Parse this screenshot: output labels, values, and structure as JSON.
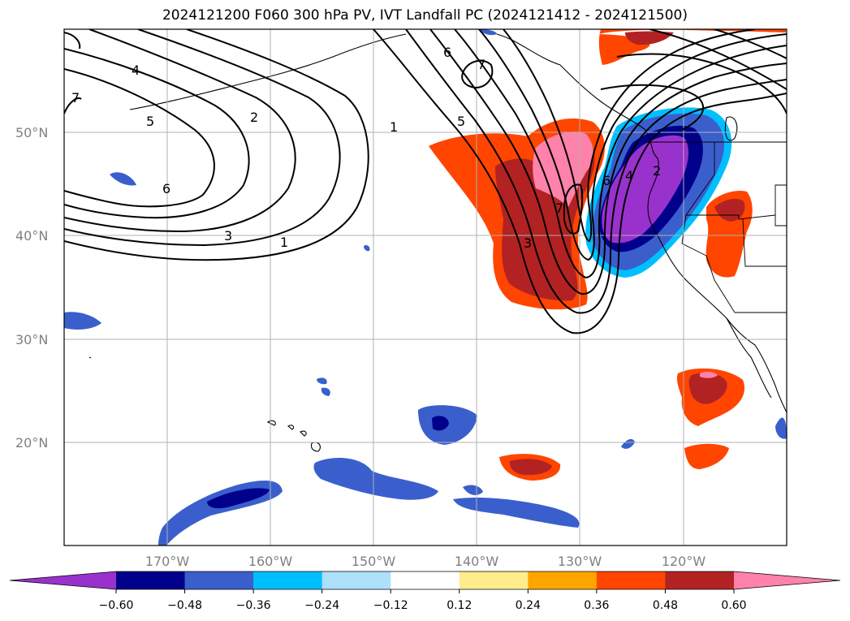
{
  "title": "2024121200 F060 300 hPa PV, IVT Landfall PC (2024121412 - 2024121500)",
  "map": {
    "lat_labels": [
      "50°N",
      "40°N",
      "30°N",
      "20°N"
    ],
    "lon_labels": [
      "170°W",
      "160°W",
      "150°W",
      "140°W",
      "130°W",
      "120°W"
    ],
    "lon_range": [
      -180,
      -110
    ],
    "lat_range": [
      10,
      60
    ]
  },
  "colorbar": {
    "ticks": [
      "−0.60",
      "−0.48",
      "−0.36",
      "−0.24",
      "−0.12",
      "0.12",
      "0.24",
      "0.36",
      "0.48",
      "0.60"
    ],
    "colors": [
      "#9932CC",
      "#00008B",
      "#3A5FCD",
      "#00BFFF",
      "#ADE0FA",
      "#FFFFFF",
      "#FFEC8B",
      "#FFA500",
      "#FF4500",
      "#B22222",
      "#FF82AB"
    ]
  },
  "pv_contour_labels": [
    "7",
    "4",
    "5",
    "2",
    "6",
    "3",
    "1",
    "1",
    "6",
    "7",
    "5",
    "3",
    "7",
    "6",
    "4",
    "2"
  ]
}
